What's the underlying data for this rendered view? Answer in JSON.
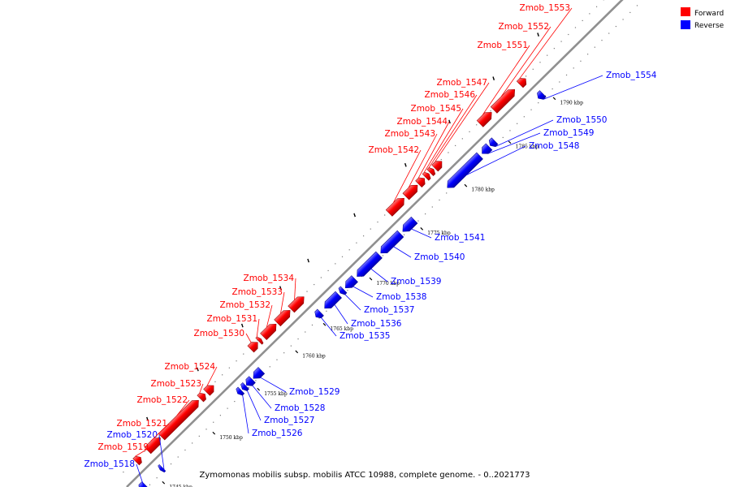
{
  "caption": "Zymomonas mobilis subsp. mobilis ATCC 10988, complete genome. - 0..2021773",
  "colors": {
    "forward": "#ff0000",
    "reverse": "#0000ff",
    "backbone": "#909090"
  },
  "legend": [
    {
      "key": "forward",
      "label": "Forward"
    },
    {
      "key": "reverse",
      "label": "Reverse"
    }
  ],
  "scale_ticks": [
    "1745 kbp",
    "1750 kbp",
    "1755 kbp",
    "1760 kbp",
    "1765 kbp",
    "1770 kbp",
    "1775 kbp",
    "1780 kbp",
    "1785 kbp",
    "1790 kbp"
  ],
  "genes": [
    {
      "name": "Zmob_1518",
      "strand": "reverse"
    },
    {
      "name": "Zmob_1519",
      "strand": "forward"
    },
    {
      "name": "Zmob_1520",
      "strand": "reverse"
    },
    {
      "name": "Zmob_1521",
      "strand": "forward"
    },
    {
      "name": "Zmob_1522",
      "strand": "forward"
    },
    {
      "name": "Zmob_1523",
      "strand": "forward"
    },
    {
      "name": "Zmob_1524",
      "strand": "forward"
    },
    {
      "name": "Zmob_1526",
      "strand": "reverse"
    },
    {
      "name": "Zmob_1527",
      "strand": "reverse"
    },
    {
      "name": "Zmob_1528",
      "strand": "reverse"
    },
    {
      "name": "Zmob_1529",
      "strand": "reverse"
    },
    {
      "name": "Zmob_1530",
      "strand": "forward"
    },
    {
      "name": "Zmob_1531",
      "strand": "forward"
    },
    {
      "name": "Zmob_1532",
      "strand": "forward"
    },
    {
      "name": "Zmob_1533",
      "strand": "forward"
    },
    {
      "name": "Zmob_1534",
      "strand": "forward"
    },
    {
      "name": "Zmob_1535",
      "strand": "reverse"
    },
    {
      "name": "Zmob_1536",
      "strand": "reverse"
    },
    {
      "name": "Zmob_1537",
      "strand": "reverse"
    },
    {
      "name": "Zmob_1538",
      "strand": "reverse"
    },
    {
      "name": "Zmob_1539",
      "strand": "reverse"
    },
    {
      "name": "Zmob_1540",
      "strand": "reverse"
    },
    {
      "name": "Zmob_1541",
      "strand": "reverse"
    },
    {
      "name": "Zmob_1542",
      "strand": "forward"
    },
    {
      "name": "Zmob_1543",
      "strand": "forward"
    },
    {
      "name": "Zmob_1544",
      "strand": "forward"
    },
    {
      "name": "Zmob_1545",
      "strand": "forward"
    },
    {
      "name": "Zmob_1546",
      "strand": "forward"
    },
    {
      "name": "Zmob_1547",
      "strand": "forward"
    },
    {
      "name": "Zmob_1548",
      "strand": "reverse"
    },
    {
      "name": "Zmob_1549",
      "strand": "reverse"
    },
    {
      "name": "Zmob_1550",
      "strand": "reverse"
    },
    {
      "name": "Zmob_1551",
      "strand": "forward"
    },
    {
      "name": "Zmob_1552",
      "strand": "forward"
    },
    {
      "name": "Zmob_1553",
      "strand": "forward"
    },
    {
      "name": "Zmob_1554",
      "strand": "reverse"
    }
  ]
}
